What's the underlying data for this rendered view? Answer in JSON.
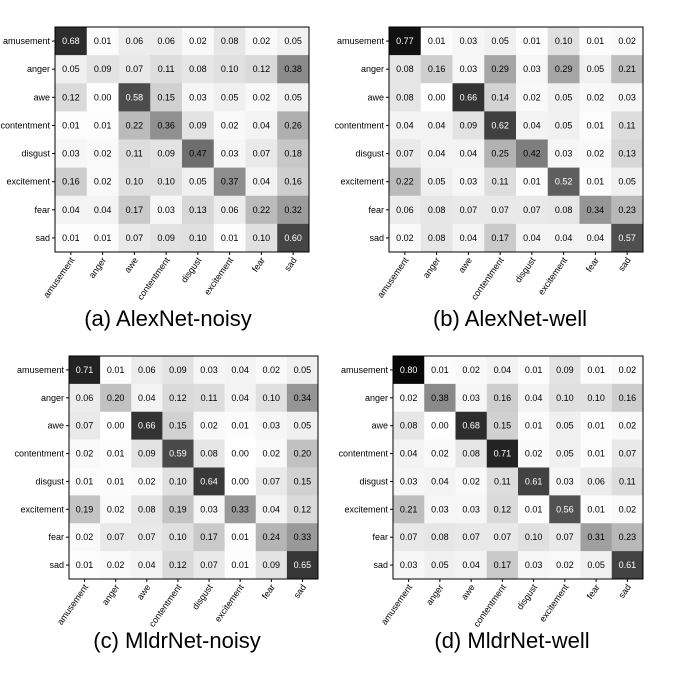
{
  "chart_data": [
    {
      "type": "heatmap",
      "caption": "(a) AlexNet-noisy",
      "categories": [
        "amusement",
        "anger",
        "awe",
        "contentment",
        "disgust",
        "excitement",
        "fear",
        "sad"
      ],
      "values": [
        [
          0.68,
          0.01,
          0.06,
          0.06,
          0.02,
          0.08,
          0.02,
          0.05
        ],
        [
          0.05,
          0.09,
          0.07,
          0.11,
          0.08,
          0.1,
          0.12,
          0.38
        ],
        [
          0.12,
          0.0,
          0.58,
          0.15,
          0.03,
          0.05,
          0.02,
          0.05
        ],
        [
          0.01,
          0.01,
          0.22,
          0.36,
          0.09,
          0.02,
          0.04,
          0.26
        ],
        [
          0.03,
          0.02,
          0.11,
          0.09,
          0.47,
          0.03,
          0.07,
          0.18
        ],
        [
          0.16,
          0.02,
          0.1,
          0.1,
          0.05,
          0.37,
          0.04,
          0.16
        ],
        [
          0.04,
          0.04,
          0.17,
          0.03,
          0.13,
          0.06,
          0.22,
          0.32
        ],
        [
          0.01,
          0.01,
          0.07,
          0.09,
          0.1,
          0.01,
          0.1,
          0.6
        ]
      ]
    },
    {
      "type": "heatmap",
      "caption": "(b) AlexNet-well",
      "categories": [
        "amusement",
        "anger",
        "awe",
        "contentment",
        "disgust",
        "excitement",
        "fear",
        "sad"
      ],
      "values": [
        [
          0.77,
          0.01,
          0.03,
          0.05,
          0.01,
          0.1,
          0.01,
          0.02
        ],
        [
          0.08,
          0.16,
          0.03,
          0.29,
          0.03,
          0.29,
          0.05,
          0.21
        ],
        [
          0.08,
          0.0,
          0.66,
          0.14,
          0.02,
          0.05,
          0.02,
          0.03
        ],
        [
          0.04,
          0.04,
          0.09,
          0.62,
          0.04,
          0.05,
          0.01,
          0.11
        ],
        [
          0.07,
          0.04,
          0.04,
          0.25,
          0.42,
          0.03,
          0.02,
          0.13
        ],
        [
          0.22,
          0.05,
          0.03,
          0.11,
          0.01,
          0.52,
          0.01,
          0.05
        ],
        [
          0.06,
          0.08,
          0.07,
          0.07,
          0.07,
          0.08,
          0.34,
          0.23
        ],
        [
          0.02,
          0.08,
          0.04,
          0.17,
          0.04,
          0.04,
          0.04,
          0.57
        ]
      ]
    },
    {
      "type": "heatmap",
      "caption": "(c) MldrNet-noisy",
      "categories": [
        "amusement",
        "anger",
        "awe",
        "contentment",
        "disgust",
        "excitement",
        "fear",
        "sad"
      ],
      "values": [
        [
          0.71,
          0.01,
          0.06,
          0.09,
          0.03,
          0.04,
          0.02,
          0.05
        ],
        [
          0.06,
          0.2,
          0.04,
          0.12,
          0.11,
          0.04,
          0.1,
          0.34
        ],
        [
          0.07,
          0.0,
          0.66,
          0.15,
          0.02,
          0.01,
          0.03,
          0.05
        ],
        [
          0.02,
          0.01,
          0.09,
          0.59,
          0.08,
          0.0,
          0.02,
          0.2
        ],
        [
          0.01,
          0.01,
          0.02,
          0.1,
          0.64,
          0.0,
          0.07,
          0.15
        ],
        [
          0.19,
          0.02,
          0.08,
          0.19,
          0.03,
          0.33,
          0.04,
          0.12
        ],
        [
          0.02,
          0.07,
          0.07,
          0.1,
          0.17,
          0.01,
          0.24,
          0.33
        ],
        [
          0.01,
          0.02,
          0.04,
          0.12,
          0.07,
          0.01,
          0.09,
          0.65
        ]
      ]
    },
    {
      "type": "heatmap",
      "caption": "(d) MldrNet-well",
      "categories": [
        "amusement",
        "anger",
        "awe",
        "contentment",
        "disgust",
        "excitement",
        "fear",
        "sad"
      ],
      "values": [
        [
          0.8,
          0.01,
          0.02,
          0.04,
          0.01,
          0.09,
          0.01,
          0.02
        ],
        [
          0.02,
          0.38,
          0.03,
          0.16,
          0.04,
          0.1,
          0.1,
          0.16
        ],
        [
          0.08,
          0.0,
          0.68,
          0.15,
          0.01,
          0.05,
          0.01,
          0.02
        ],
        [
          0.04,
          0.02,
          0.08,
          0.71,
          0.02,
          0.05,
          0.01,
          0.07
        ],
        [
          0.03,
          0.04,
          0.02,
          0.11,
          0.61,
          0.03,
          0.06,
          0.11
        ],
        [
          0.21,
          0.03,
          0.03,
          0.12,
          0.01,
          0.56,
          0.01,
          0.02
        ],
        [
          0.07,
          0.08,
          0.07,
          0.07,
          0.1,
          0.07,
          0.31,
          0.23
        ],
        [
          0.03,
          0.05,
          0.04,
          0.17,
          0.03,
          0.02,
          0.05,
          0.61
        ]
      ]
    }
  ]
}
